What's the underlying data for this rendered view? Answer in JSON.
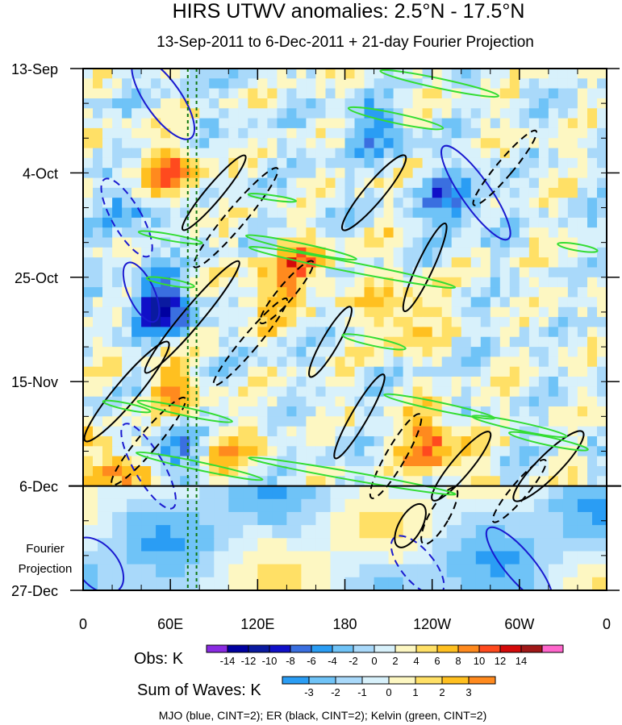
{
  "chart_data": {
    "type": "heatmap",
    "title": "HIRS UTWV anomalies: 2.5°N - 17.5°N",
    "subtitle": "13-Sep-2011 to 6-Dec-2011 + 21-day Fourier Projection",
    "xlabel": "",
    "ylabel": "",
    "x_ticks": [
      {
        "lon": 0,
        "label": "0"
      },
      {
        "lon": 60,
        "label": "60E"
      },
      {
        "lon": 120,
        "label": "120E"
      },
      {
        "lon": 180,
        "label": "180"
      },
      {
        "lon": 240,
        "label": "120W"
      },
      {
        "lon": 300,
        "label": "60W"
      },
      {
        "lon": 360,
        "label": "0"
      }
    ],
    "xlim": [
      0,
      360
    ],
    "y_ticks": [
      {
        "day": 0,
        "label": "13-Sep"
      },
      {
        "day": 21,
        "label": "4-Oct"
      },
      {
        "day": 42,
        "label": "25-Oct"
      },
      {
        "day": 63,
        "label": "15-Nov"
      },
      {
        "day": 84,
        "label": "6-Dec"
      },
      {
        "day": 105,
        "label": "27-Dec"
      }
    ],
    "ylim": [
      0,
      105
    ],
    "observation_end_day": 84,
    "projection_label": [
      "Fourier",
      "Projection"
    ],
    "reference_longitudes": [
      72,
      78
    ],
    "obs_colorbar": {
      "label": "Obs: K",
      "levels": [
        "-14",
        "-12",
        "-10",
        "-8",
        "-6",
        "-4",
        "-2",
        "0",
        "2",
        "4",
        "6",
        "8",
        "10",
        "12",
        "14"
      ],
      "colors": [
        "#8a2be2",
        "#0000a0",
        "#0a1aa0",
        "#1010c8",
        "#3a6fe0",
        "#2a9df4",
        "#6fc3f7",
        "#a9d9fa",
        "#d8f1fb",
        "#fdf7c2",
        "#ffe066",
        "#ffc020",
        "#ff8a1e",
        "#ff4a1e",
        "#d40a0a",
        "#a01818",
        "#ff66cc"
      ]
    },
    "waves_colorbar": {
      "label": "Sum of Waves: K",
      "levels": [
        "-3",
        "-2",
        "-1",
        "0",
        "1",
        "2",
        "3"
      ],
      "colors": [
        "#2a9df4",
        "#6fc3f7",
        "#a9d9fa",
        "#d8f1fb",
        "#fdf7c2",
        "#ffe066",
        "#ffc020",
        "#ff8a1e"
      ]
    },
    "contour_legend": "MJO (blue, CINT=2); ER (black, CINT=2); Kelvin (green, CINT=2)",
    "series": [
      {
        "name": "MJO",
        "color": "#1a1ad0"
      },
      {
        "name": "ER",
        "color": "#000000"
      },
      {
        "name": "Kelvin",
        "color": "#33dd33"
      }
    ]
  }
}
